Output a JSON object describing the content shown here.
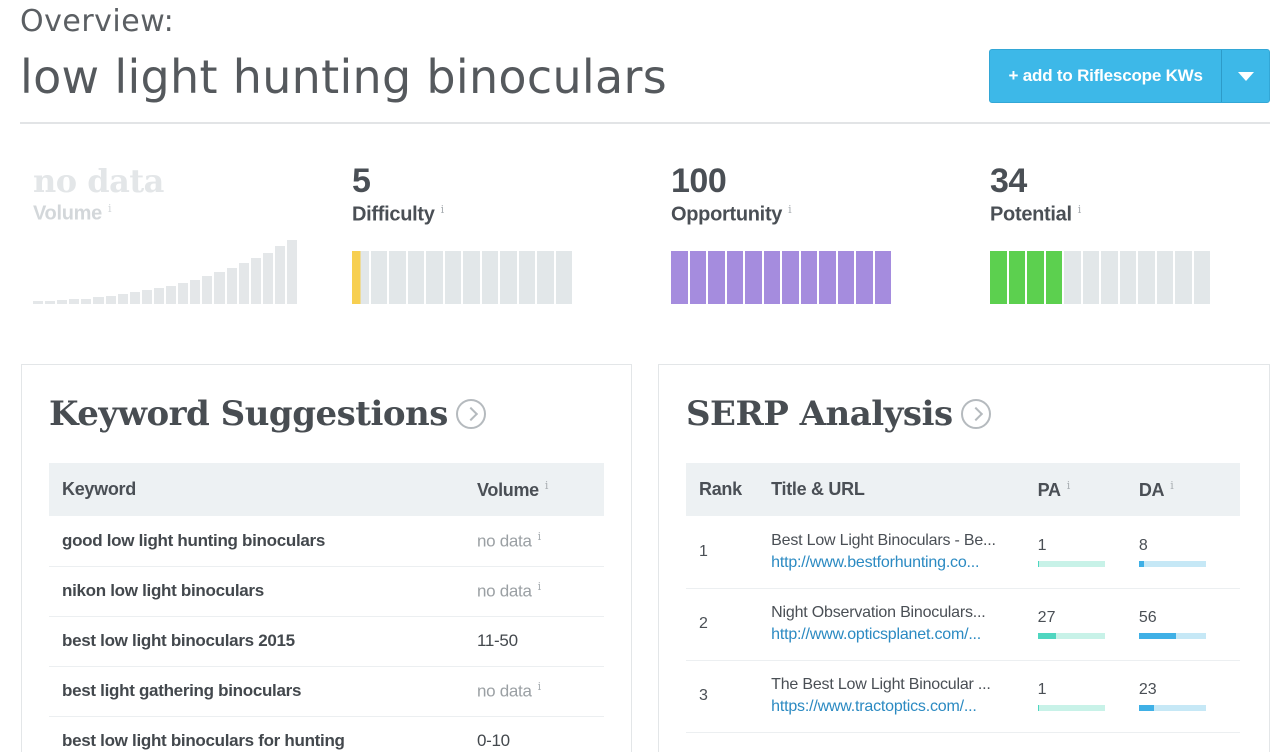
{
  "header": {
    "overview_label": "Overview:",
    "keyword": "low light hunting binoculars",
    "add_button_label": "+ add to Riflescope KWs"
  },
  "metrics": {
    "volume": {
      "value": "no data",
      "label": "Volume",
      "info": "i",
      "bar_levels": [
        0.04,
        0.05,
        0.06,
        0.07,
        0.08,
        0.1,
        0.12,
        0.14,
        0.17,
        0.2,
        0.23,
        0.27,
        0.31,
        0.36,
        0.41,
        0.47,
        0.53,
        0.6,
        0.67,
        0.75,
        0.85,
        0.94
      ]
    },
    "difficulty": {
      "value": "5",
      "label": "Difficulty",
      "info": "i",
      "segments_total": 12,
      "segments_filled": 0.5,
      "color": "#f7cf50"
    },
    "opportunity": {
      "value": "100",
      "label": "Opportunity",
      "info": "i",
      "segments_total": 12,
      "segments_filled": 12,
      "color": "#a58cde"
    },
    "potential": {
      "value": "34",
      "label": "Potential",
      "info": "i",
      "segments_total": 12,
      "segments_filled": 4,
      "color": "#5cd04f"
    }
  },
  "keyword_suggestions": {
    "title": "Keyword Suggestions",
    "columns": {
      "keyword": "Keyword",
      "volume": "Volume",
      "info": "i"
    },
    "rows": [
      {
        "keyword": "good low light hunting binoculars",
        "volume": "no data",
        "info": "i"
      },
      {
        "keyword": "nikon low light binoculars",
        "volume": "no data",
        "info": "i"
      },
      {
        "keyword": "best low light binoculars 2015",
        "volume": "11-50"
      },
      {
        "keyword": "best light gathering binoculars",
        "volume": "no data",
        "info": "i"
      },
      {
        "keyword": "best low light binoculars for hunting",
        "volume": "0-10"
      }
    ]
  },
  "serp_analysis": {
    "title": "SERP Analysis",
    "columns": {
      "rank": "Rank",
      "title_url": "Title & URL",
      "pa": "PA",
      "da": "DA",
      "info": "i"
    },
    "rows": [
      {
        "rank": "1",
        "title": "Best Low Light Binoculars - Be...",
        "url": "http://www.bestforhunting.co...",
        "pa": 1,
        "da": 8
      },
      {
        "rank": "2",
        "title": "Night Observation Binoculars...",
        "url": "http://www.opticsplanet.com/...",
        "pa": 27,
        "da": 56
      },
      {
        "rank": "3",
        "title": "The Best Low Light Binocular ...",
        "url": "https://www.tractoptics.com/...",
        "pa": 1,
        "da": 23
      }
    ]
  }
}
